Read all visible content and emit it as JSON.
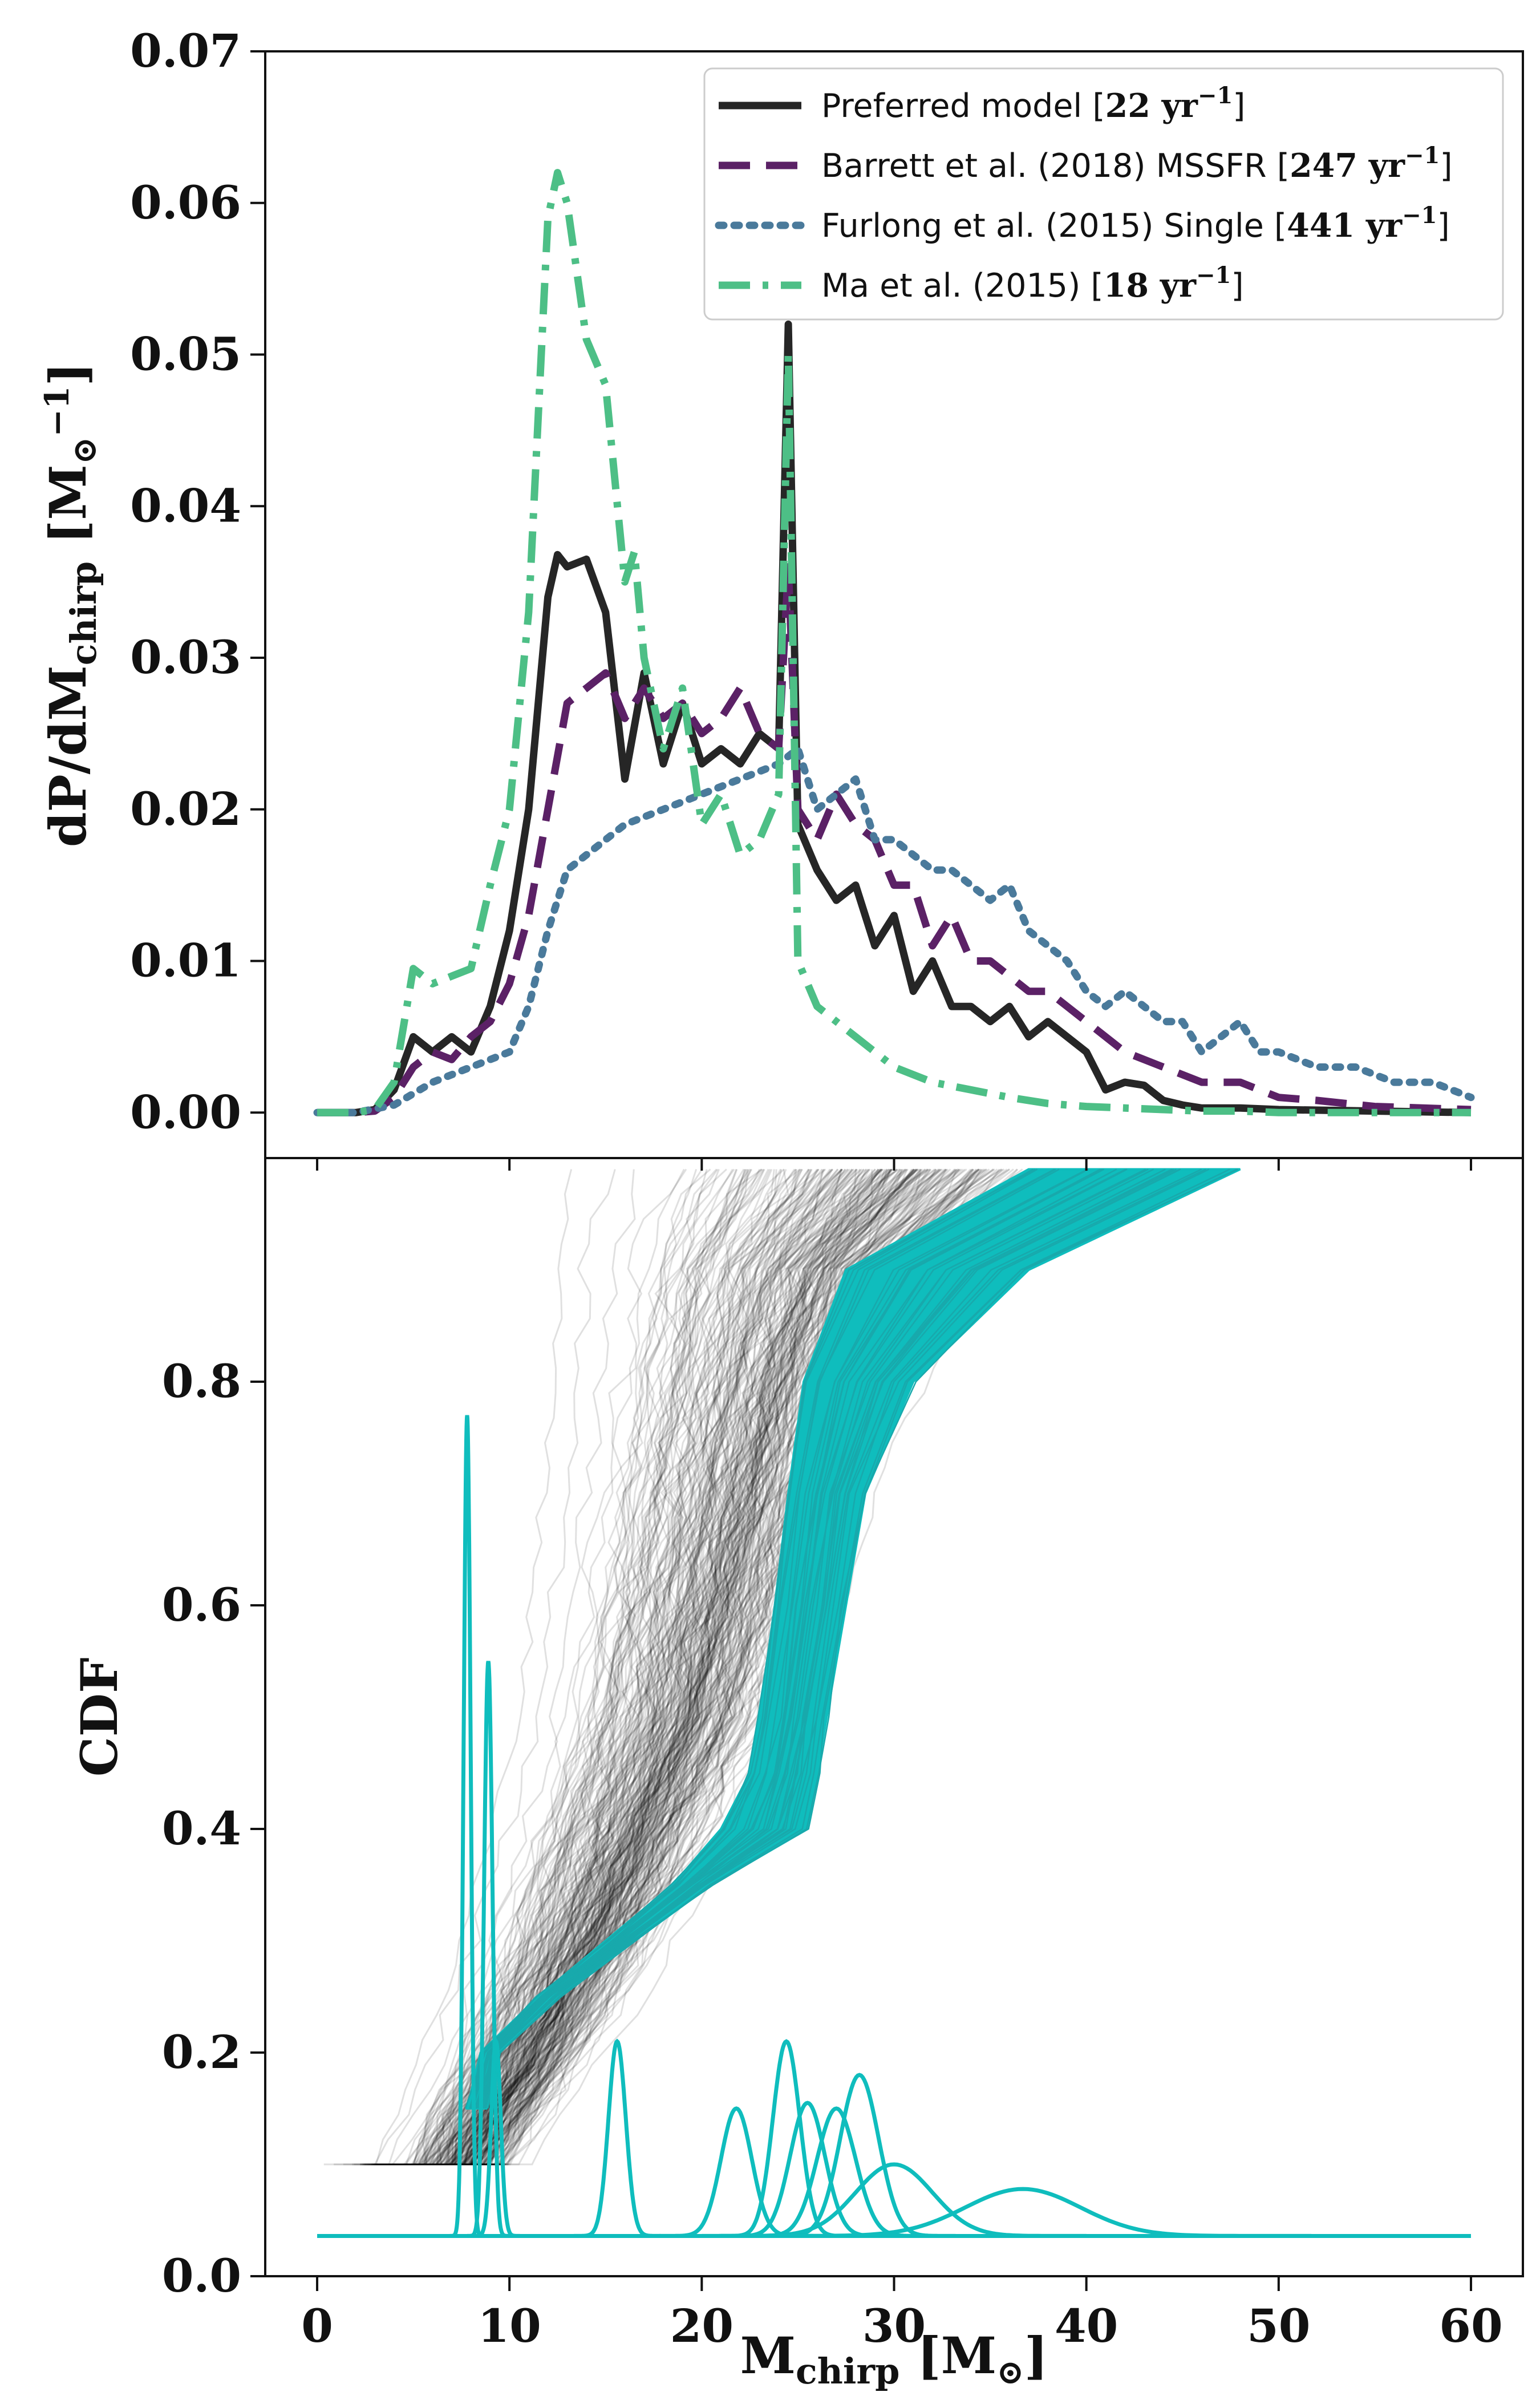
{
  "chart_data": [
    {
      "type": "line",
      "panel": "top",
      "xlabel": "",
      "ylabel": "dP/dM_chirp [M_⊙^−1]",
      "ylabel_parts": {
        "main": "dP/dM",
        "sub": "chirp",
        "unit_open": " [M",
        "unit_sub": "⊙",
        "unit_sup": "−1",
        "unit_close": "]"
      },
      "xlim": [
        -2.7,
        62.7
      ],
      "ylim": [
        -0.003,
        0.07
      ],
      "yticks": [
        0.0,
        0.01,
        0.02,
        0.03,
        0.04,
        0.05,
        0.06,
        0.07
      ],
      "ytick_labels": [
        "0.00",
        "0.01",
        "0.02",
        "0.03",
        "0.04",
        "0.05",
        "0.06",
        "0.07"
      ],
      "xticks": [
        0,
        10,
        20,
        30,
        40,
        50,
        60
      ],
      "legend_position": "top-right",
      "series": [
        {
          "name": "Preferred model [22 yr⁻¹]",
          "legend_parts": [
            "Preferred model [",
            "22 yr",
            "−1",
            "]"
          ],
          "color": "#262626",
          "style": "solid",
          "x": [
            0,
            2,
            3,
            4,
            5,
            6,
            7,
            8,
            9,
            10,
            11,
            12,
            12.5,
            13,
            14,
            15,
            16,
            17,
            18,
            19,
            20,
            21,
            22,
            23,
            24,
            24.5,
            25,
            26,
            27,
            28,
            29,
            30,
            31,
            32,
            33,
            34,
            35,
            36,
            37,
            38,
            39,
            40,
            41,
            42,
            43,
            44,
            45,
            46,
            48,
            50,
            55,
            60
          ],
          "y": [
            0.0,
            0.0,
            0.0002,
            0.0015,
            0.005,
            0.004,
            0.005,
            0.004,
            0.007,
            0.012,
            0.02,
            0.034,
            0.0368,
            0.036,
            0.0365,
            0.033,
            0.022,
            0.029,
            0.023,
            0.027,
            0.023,
            0.024,
            0.023,
            0.025,
            0.024,
            0.052,
            0.019,
            0.016,
            0.014,
            0.015,
            0.011,
            0.013,
            0.008,
            0.01,
            0.007,
            0.007,
            0.006,
            0.007,
            0.005,
            0.006,
            0.005,
            0.004,
            0.0015,
            0.002,
            0.0018,
            0.0008,
            0.0005,
            0.0003,
            0.0003,
            0.0002,
            0.0001,
            0.0
          ]
        },
        {
          "name": "Barrett et al. (2018) MSSFR [247 yr⁻¹]",
          "legend_parts": [
            "Barrett et al. (2018) MSSFR [",
            "247 yr",
            "−1",
            "]"
          ],
          "color": "#5b2166",
          "style": "dashed",
          "x": [
            0,
            2,
            3,
            4,
            5,
            6,
            7,
            8,
            9,
            10,
            11,
            12,
            13,
            14,
            15,
            16,
            17,
            18,
            19,
            20,
            21,
            22,
            23,
            24,
            24.5,
            25,
            26,
            27,
            28,
            29,
            30,
            31,
            32,
            33,
            34,
            35,
            36,
            37,
            38,
            39,
            40,
            42,
            44,
            46,
            48,
            50,
            52,
            55,
            60
          ],
          "y": [
            0.0,
            0.0,
            0.0001,
            0.001,
            0.003,
            0.004,
            0.0035,
            0.005,
            0.006,
            0.0085,
            0.013,
            0.02,
            0.027,
            0.028,
            0.029,
            0.026,
            0.028,
            0.026,
            0.027,
            0.025,
            0.026,
            0.028,
            0.025,
            0.024,
            0.036,
            0.02,
            0.018,
            0.021,
            0.019,
            0.018,
            0.015,
            0.015,
            0.011,
            0.013,
            0.01,
            0.01,
            0.009,
            0.008,
            0.008,
            0.007,
            0.006,
            0.004,
            0.003,
            0.002,
            0.002,
            0.001,
            0.0008,
            0.0004,
            0.0002
          ]
        },
        {
          "name": "Furlong et al. (2015) Single [441 yr⁻¹]",
          "legend_parts": [
            "Furlong et al. (2015) Single [",
            "441 yr",
            "−1",
            "]"
          ],
          "color": "#4a7a9b",
          "style": "dotted",
          "x": [
            0,
            2,
            4,
            6,
            8,
            10,
            11,
            12,
            13,
            14,
            15,
            16,
            18,
            20,
            22,
            24,
            25,
            26,
            27,
            28,
            29,
            30,
            31,
            32,
            33,
            34,
            35,
            36,
            37,
            38,
            39,
            40,
            41,
            42,
            43,
            44,
            45,
            46,
            47,
            48,
            49,
            50,
            52,
            54,
            56,
            58,
            59,
            60
          ],
          "y": [
            0.0,
            0.0,
            0.0005,
            0.002,
            0.003,
            0.004,
            0.007,
            0.012,
            0.016,
            0.017,
            0.018,
            0.019,
            0.02,
            0.021,
            0.022,
            0.023,
            0.024,
            0.02,
            0.021,
            0.022,
            0.018,
            0.018,
            0.017,
            0.016,
            0.016,
            0.015,
            0.014,
            0.015,
            0.012,
            0.011,
            0.01,
            0.008,
            0.007,
            0.008,
            0.007,
            0.006,
            0.006,
            0.004,
            0.005,
            0.006,
            0.004,
            0.004,
            0.003,
            0.003,
            0.002,
            0.002,
            0.0015,
            0.001
          ]
        },
        {
          "name": "Ma et al. (2015) [18 yr⁻¹]",
          "legend_parts": [
            "Ma et al. (2015) [",
            "18 yr",
            "−1",
            "]"
          ],
          "color": "#4dbf86",
          "style": "dashdot",
          "x": [
            0,
            2,
            3,
            4,
            5,
            6,
            7,
            8,
            9,
            10,
            11,
            12,
            12.5,
            13,
            14,
            15,
            16,
            16.5,
            17,
            18,
            19,
            20,
            21,
            22,
            23,
            24,
            24.5,
            25,
            26,
            27,
            28,
            30,
            32,
            34,
            36,
            38,
            40,
            42,
            44,
            46,
            48,
            50,
            55,
            60
          ],
          "y": [
            0.0,
            0.0,
            0.0002,
            0.002,
            0.0095,
            0.0085,
            0.009,
            0.0095,
            0.015,
            0.02,
            0.033,
            0.059,
            0.062,
            0.06,
            0.051,
            0.048,
            0.035,
            0.037,
            0.03,
            0.024,
            0.028,
            0.019,
            0.021,
            0.017,
            0.018,
            0.021,
            0.05,
            0.01,
            0.007,
            0.006,
            0.005,
            0.003,
            0.002,
            0.0015,
            0.001,
            0.0006,
            0.0004,
            0.0003,
            0.0002,
            0.0001,
            0.0001,
            0.0,
            0.0,
            0.0
          ]
        }
      ]
    },
    {
      "type": "line",
      "panel": "bottom",
      "xlabel": "M_chirp [M_⊙]",
      "xlabel_parts": {
        "main": "M",
        "sub": "chirp",
        "unit_open": "  [M",
        "unit_sub": "⊙",
        "unit_close": "]"
      },
      "ylabel": "CDF",
      "xlim": [
        -2.7,
        62.7
      ],
      "ylim": [
        0.0,
        1.0
      ],
      "yticks": [
        0.0,
        0.2,
        0.4,
        0.6,
        0.8
      ],
      "ytick_labels": [
        "0.0",
        "0.2",
        "0.4",
        "0.6",
        "0.8"
      ],
      "xticks": [
        0,
        10,
        20,
        30,
        40,
        50,
        60
      ],
      "xtick_labels": [
        "0",
        "10",
        "20",
        "30",
        "40",
        "50",
        "60"
      ],
      "description_free": true,
      "series": [
        {
          "role": "cdf-band-black",
          "color": "#000000",
          "cdf_points": [
            0.1,
            0.2,
            0.3,
            0.4,
            0.5,
            0.6,
            0.7,
            0.8,
            0.9,
            0.99
          ],
          "center_x": [
            7.5,
            11.0,
            14.0,
            16.5,
            19.0,
            20.5,
            22.0,
            23.5,
            25.5,
            30.0
          ],
          "spread_x": [
            2.5,
            3.0,
            3.5,
            4.0,
            4.5,
            5.0,
            5.5,
            6.0,
            7.0,
            9.0
          ]
        },
        {
          "role": "cdf-band-cyan",
          "color": "#0fbdbd",
          "cdf_points": [
            0.15,
            0.2,
            0.25,
            0.3,
            0.35,
            0.4,
            0.45,
            0.5,
            0.6,
            0.7,
            0.8,
            0.9,
            0.99
          ],
          "left_x": [
            7.8,
            8.5,
            11.5,
            15.0,
            18.5,
            21.0,
            22.5,
            23.0,
            23.8,
            24.5,
            25.3,
            27.5,
            37.0
          ],
          "right_x": [
            8.8,
            9.5,
            12.5,
            16.5,
            20.5,
            25.5,
            26.0,
            26.5,
            27.5,
            28.5,
            31.0,
            37.0,
            48.0
          ]
        },
        {
          "role": "posterior-peaks",
          "color": "#0fbdbd",
          "baseline": 0.036,
          "peaks": [
            {
              "mu": 7.8,
              "sigma": 0.18,
              "height": 0.77
            },
            {
              "mu": 8.9,
              "sigma": 0.22,
              "height": 0.55
            },
            {
              "mu": 9.3,
              "sigma": 0.25,
              "height": 0.21
            },
            {
              "mu": 15.6,
              "sigma": 0.45,
              "height": 0.21
            },
            {
              "mu": 21.8,
              "sigma": 0.8,
              "height": 0.15
            },
            {
              "mu": 24.4,
              "sigma": 0.7,
              "height": 0.21
            },
            {
              "mu": 25.5,
              "sigma": 0.9,
              "height": 0.155
            },
            {
              "mu": 27.0,
              "sigma": 1.0,
              "height": 0.15
            },
            {
              "mu": 28.2,
              "sigma": 1.0,
              "height": 0.18
            },
            {
              "mu": 30.0,
              "sigma": 2.0,
              "height": 0.1
            },
            {
              "mu": 36.7,
              "sigma": 3.0,
              "height": 0.078
            }
          ]
        }
      ]
    }
  ]
}
